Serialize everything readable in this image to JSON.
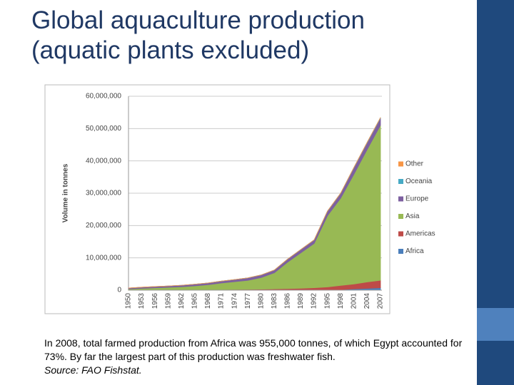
{
  "chart_data": {
    "type": "stacked-area",
    "title": "Global aquaculture production (aquatic plants excluded)",
    "y_label": "Volume in tonnes",
    "categories": [
      "1950",
      "1953",
      "1956",
      "1959",
      "1962",
      "1965",
      "1968",
      "1971",
      "1974",
      "1977",
      "1980",
      "1983",
      "1986",
      "1989",
      "1992",
      "1995",
      "1998",
      "2001",
      "2004",
      "2007"
    ],
    "series": [
      {
        "name": "Africa",
        "color": "#4a7ebb",
        "values": [
          5000,
          7000,
          10000,
          12000,
          15000,
          20000,
          25000,
          30000,
          35000,
          40000,
          50000,
          60000,
          70000,
          80000,
          100000,
          110000,
          180000,
          400000,
          550000,
          750000
        ]
      },
      {
        "name": "Americas",
        "color": "#be4b48",
        "values": [
          50000,
          60000,
          70000,
          80000,
          100000,
          120000,
          150000,
          170000,
          190000,
          200000,
          250000,
          320000,
          400000,
          500000,
          650000,
          900000,
          1300000,
          1500000,
          2000000,
          2300000
        ]
      },
      {
        "name": "Asia",
        "color": "#98b954",
        "values": [
          300000,
          500000,
          650000,
          800000,
          950000,
          1200000,
          1500000,
          2000000,
          2400000,
          2800000,
          3600000,
          5000000,
          8200000,
          11000000,
          13700000,
          22000000,
          27000000,
          34000000,
          41000000,
          48000000
        ]
      },
      {
        "name": "Europe",
        "color": "#7d60a0",
        "values": [
          300000,
          350000,
          380000,
          400000,
          450000,
          500000,
          550000,
          600000,
          650000,
          750000,
          800000,
          850000,
          950000,
          1000000,
          1100000,
          1400000,
          1500000,
          2000000,
          2100000,
          2200000
        ]
      },
      {
        "name": "Oceania",
        "color": "#46aac5",
        "values": [
          1000,
          1000,
          1000,
          2000,
          2000,
          2000,
          3000,
          4000,
          5000,
          6000,
          10000,
          15000,
          20000,
          30000,
          40000,
          50000,
          70000,
          100000,
          130000,
          150000
        ]
      },
      {
        "name": "Other",
        "color": "#f79646",
        "values": [
          1000,
          1000,
          1000,
          1000,
          2000,
          2000,
          2000,
          3000,
          3000,
          4000,
          5000,
          6000,
          8000,
          10000,
          12000,
          15000,
          20000,
          25000,
          30000,
          35000
        ]
      }
    ],
    "ylim": [
      0,
      60000000
    ],
    "yticks": [
      0,
      {
        "value": 10000000,
        "label": "10,000,000"
      },
      {
        "value": 20000000,
        "label": "20,000,000"
      },
      {
        "value": 30000000,
        "label": "30,000,000"
      },
      {
        "value": 40000000,
        "label": "40,000,000"
      },
      {
        "value": 50000000,
        "label": "50,000,000"
      },
      {
        "value": 60000000,
        "label": "60,000,000"
      }
    ],
    "grid": true,
    "legend": "right"
  },
  "caption": {
    "text": "In 2008, total farmed production from Africa was 955,000 tonnes, of which Egypt accounted for 73%. By far the largest part of this production was freshwater fish.",
    "source": "Source: FAO Fishstat."
  }
}
